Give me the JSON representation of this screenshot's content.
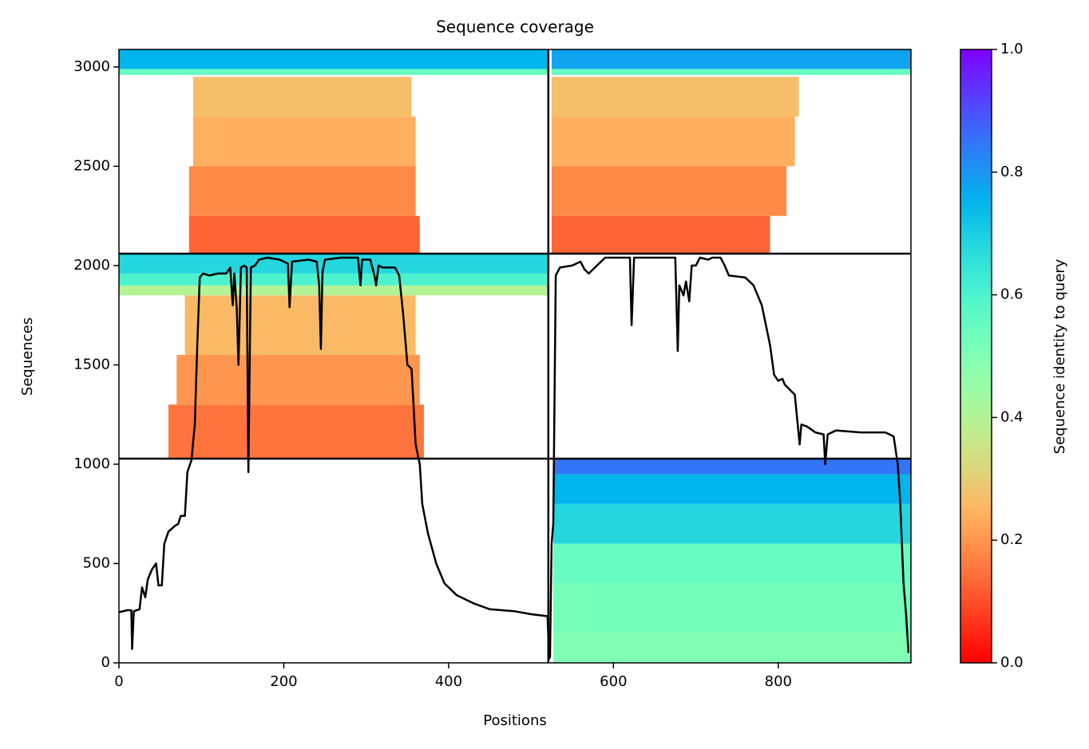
{
  "chart_data": {
    "type": "coverage",
    "title": "Sequence coverage",
    "xlabel": "Positions",
    "ylabel": "Sequences",
    "xlim": [
      0,
      961
    ],
    "ylim": [
      0,
      3088
    ],
    "xticks": [
      0,
      200,
      400,
      600,
      800
    ],
    "yticks": [
      0,
      500,
      1000,
      1500,
      2000,
      2500,
      3000
    ],
    "colormap": "rainbow_r",
    "colorbar": {
      "label": "Sequence identity to query",
      "lim": [
        0,
        1
      ],
      "ticks": [
        {
          "value": 0,
          "label": "0.0"
        },
        0.2,
        0.4,
        0.6,
        0.8,
        {
          "value": 1,
          "label": "1.0"
        }
      ]
    },
    "blocks": [
      {
        "x": [
          527,
          961
        ],
        "y": [
          0,
          150
        ],
        "identity": 0.5
      },
      {
        "x": [
          527,
          961
        ],
        "y": [
          150,
          400
        ],
        "identity": 0.52
      },
      {
        "x": [
          527,
          961
        ],
        "y": [
          400,
          600
        ],
        "identity": 0.55
      },
      {
        "x": [
          527,
          961
        ],
        "y": [
          600,
          800
        ],
        "identity": 0.68
      },
      {
        "x": [
          527,
          961
        ],
        "y": [
          800,
          950
        ],
        "identity": 0.75
      },
      {
        "x": [
          527,
          961
        ],
        "y": [
          950,
          1028
        ],
        "identity": 0.85
      },
      {
        "x": [
          60,
          370
        ],
        "y": [
          1028,
          1300
        ],
        "identity": 0.15
      },
      {
        "x": [
          70,
          365
        ],
        "y": [
          1300,
          1550
        ],
        "identity": 0.2
      },
      {
        "x": [
          80,
          360
        ],
        "y": [
          1550,
          1850
        ],
        "identity": 0.26
      },
      {
        "x": [
          0,
          521
        ],
        "y": [
          1850,
          1900
        ],
        "identity": 0.4
      },
      {
        "x": [
          0,
          521
        ],
        "y": [
          1900,
          1960
        ],
        "identity": 0.6
      },
      {
        "x": [
          0,
          521
        ],
        "y": [
          1960,
          2060
        ],
        "identity": 0.68
      },
      {
        "x": [
          85,
          365
        ],
        "y": [
          2060,
          2250
        ],
        "identity": 0.13
      },
      {
        "x": [
          85,
          360
        ],
        "y": [
          2250,
          2500
        ],
        "identity": 0.18
      },
      {
        "x": [
          90,
          360
        ],
        "y": [
          2500,
          2750
        ],
        "identity": 0.24
      },
      {
        "x": [
          90,
          355
        ],
        "y": [
          2750,
          2950
        ],
        "identity": 0.27
      },
      {
        "x": [
          0,
          521
        ],
        "y": [
          2960,
          2990
        ],
        "identity": 0.55
      },
      {
        "x": [
          0,
          521
        ],
        "y": [
          2990,
          3088
        ],
        "identity": 0.75
      },
      {
        "x": [
          525,
          790
        ],
        "y": [
          2060,
          2250
        ],
        "identity": 0.13
      },
      {
        "x": [
          525,
          810
        ],
        "y": [
          2250,
          2500
        ],
        "identity": 0.18
      },
      {
        "x": [
          525,
          820
        ],
        "y": [
          2500,
          2750
        ],
        "identity": 0.24
      },
      {
        "x": [
          525,
          825
        ],
        "y": [
          2750,
          2950
        ],
        "identity": 0.27
      },
      {
        "x": [
          525,
          961
        ],
        "y": [
          2960,
          2990
        ],
        "identity": 0.55
      },
      {
        "x": [
          525,
          961
        ],
        "y": [
          2990,
          3088
        ],
        "identity": 0.78
      }
    ],
    "separators": {
      "x": [
        521
      ],
      "y": [
        1028,
        2060
      ]
    },
    "coverage": {
      "color": "#000000",
      "x": [
        0,
        10,
        15,
        16,
        18,
        25,
        28,
        32,
        35,
        40,
        45,
        48,
        52,
        55,
        60,
        68,
        72,
        75,
        80,
        83,
        88,
        92,
        95,
        98,
        102,
        110,
        120,
        130,
        135,
        138,
        140,
        143,
        145,
        148,
        152,
        155,
        157,
        160,
        165,
        170,
        180,
        195,
        205,
        207,
        210,
        230,
        240,
        243,
        245,
        247,
        250,
        270,
        290,
        293,
        295,
        305,
        310,
        312,
        315,
        320,
        335,
        340,
        345,
        350,
        355,
        360,
        365,
        368,
        375,
        385,
        395,
        410,
        430,
        450,
        480,
        500,
        520,
        522,
        523,
        525,
        527,
        530,
        535,
        550,
        560,
        565,
        570,
        580,
        590,
        610,
        620,
        622,
        625,
        660,
        675,
        678,
        680,
        685,
        688,
        692,
        695,
        700,
        705,
        715,
        720,
        730,
        735,
        740,
        760,
        770,
        780,
        790,
        795,
        800,
        805,
        808,
        820,
        826,
        828,
        835,
        845,
        855,
        857,
        860,
        870,
        900,
        930,
        940,
        945,
        948,
        952,
        955,
        958
      ],
      "y": [
        255,
        265,
        265,
        70,
        260,
        270,
        380,
        330,
        420,
        470,
        500,
        390,
        390,
        600,
        660,
        690,
        700,
        740,
        740,
        960,
        1020,
        1200,
        1600,
        1940,
        1960,
        1950,
        1960,
        1960,
        1990,
        1800,
        1960,
        1780,
        1500,
        1990,
        2000,
        1990,
        960,
        1990,
        2000,
        2030,
        2040,
        2030,
        2010,
        1790,
        2020,
        2030,
        2020,
        1900,
        1580,
        1970,
        2030,
        2040,
        2040,
        1900,
        2030,
        2030,
        1950,
        1900,
        2000,
        1990,
        1990,
        1950,
        1750,
        1500,
        1480,
        1100,
        1000,
        800,
        650,
        500,
        400,
        340,
        300,
        270,
        260,
        245,
        235,
        20,
        30,
        600,
        700,
        1950,
        1990,
        2000,
        2020,
        1980,
        1960,
        2000,
        2040,
        2040,
        2040,
        1700,
        2040,
        2040,
        2040,
        1570,
        1900,
        1850,
        1920,
        1820,
        2000,
        2000,
        2040,
        2030,
        2040,
        2040,
        2000,
        1950,
        1940,
        1900,
        1800,
        1600,
        1450,
        1420,
        1430,
        1400,
        1350,
        1100,
        1200,
        1190,
        1160,
        1150,
        1000,
        1150,
        1170,
        1160,
        1160,
        1140,
        1000,
        800,
        400,
        250,
        50
      ]
    }
  }
}
